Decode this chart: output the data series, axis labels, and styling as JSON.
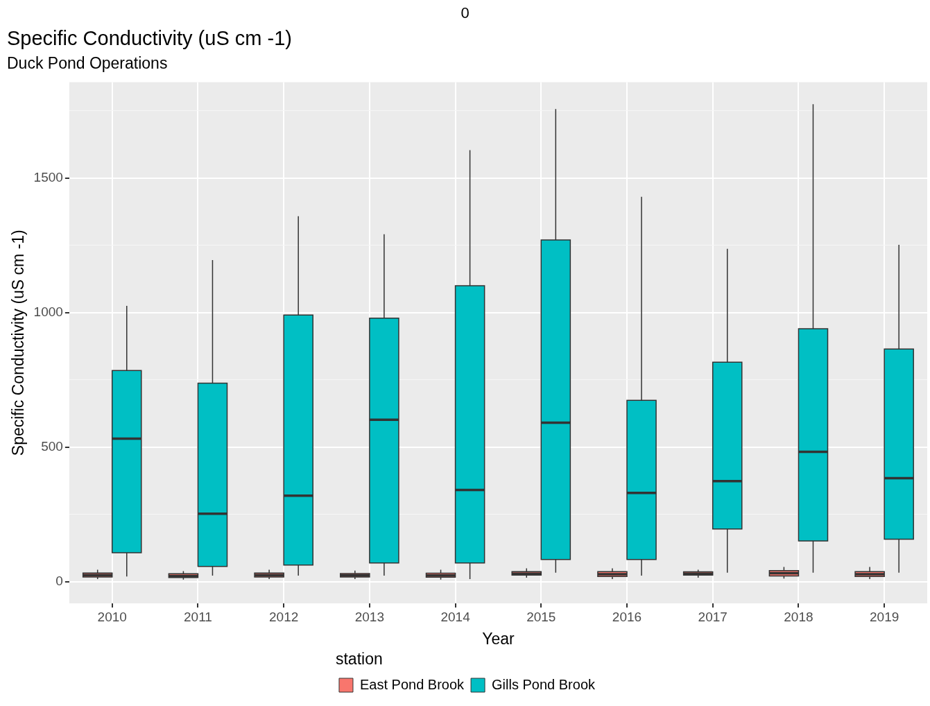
{
  "chart_data": {
    "type": "box",
    "title": "Specific Conductivity (uS cm -1)",
    "subtitle": "Duck Pond Operations",
    "xlabel": "Year",
    "ylabel": "Specific Conductivity (uS cm -1)",
    "legend_title": "station",
    "legend": "bottom",
    "grid": true,
    "annotations": [
      "0"
    ],
    "categories": [
      "2010",
      "2011",
      "2012",
      "2013",
      "2014",
      "2015",
      "2016",
      "2017",
      "2018",
      "2019"
    ],
    "ylim": [
      -80,
      1856
    ],
    "yticks": [
      0,
      {
        "value": 250,
        "label": null
      },
      500,
      {
        "value": 750,
        "label": null
      },
      1000,
      {
        "value": 1250,
        "label": null
      },
      1500,
      {
        "value": 1750,
        "label": null
      }
    ],
    "series": [
      {
        "name": "East Pond Brook",
        "color": "#f8766d",
        "boxes": [
          {
            "low": 10,
            "q1": 18,
            "median": 25,
            "q3": 33,
            "high": 45
          },
          {
            "low": 8,
            "q1": 16,
            "median": 22,
            "q3": 30,
            "high": 40
          },
          {
            "low": 10,
            "q1": 18,
            "median": 25,
            "q3": 33,
            "high": 45
          },
          {
            "low": 10,
            "q1": 18,
            "median": 24,
            "q3": 31,
            "high": 42
          },
          {
            "low": 8,
            "q1": 17,
            "median": 24,
            "q3": 32,
            "high": 45
          },
          {
            "low": 15,
            "q1": 25,
            "median": 30,
            "q3": 38,
            "high": 50
          },
          {
            "low": 10,
            "q1": 20,
            "median": 28,
            "q3": 38,
            "high": 50
          },
          {
            "low": 15,
            "q1": 25,
            "median": 30,
            "q3": 37,
            "high": 45
          },
          {
            "low": 12,
            "q1": 22,
            "median": 32,
            "q3": 42,
            "high": 55
          },
          {
            "low": 10,
            "q1": 20,
            "median": 28,
            "q3": 38,
            "high": 55
          }
        ]
      },
      {
        "name": "Gills Pond Brook",
        "color": "#00bfc4",
        "boxes": [
          {
            "low": 20,
            "q1": 108,
            "median": 532,
            "q3": 785,
            "high": 1025
          },
          {
            "low": 23,
            "q1": 57,
            "median": 253,
            "q3": 738,
            "high": 1195
          },
          {
            "low": 23,
            "q1": 62,
            "median": 320,
            "q3": 991,
            "high": 1358
          },
          {
            "low": 23,
            "q1": 70,
            "median": 602,
            "q3": 979,
            "high": 1291
          },
          {
            "low": 10,
            "q1": 70,
            "median": 341,
            "q3": 1100,
            "high": 1603
          },
          {
            "low": 34,
            "q1": 83,
            "median": 591,
            "q3": 1270,
            "high": 1756
          },
          {
            "low": 23,
            "q1": 83,
            "median": 330,
            "q3": 674,
            "high": 1430
          },
          {
            "low": 34,
            "q1": 196,
            "median": 374,
            "q3": 816,
            "high": 1237
          },
          {
            "low": 34,
            "q1": 152,
            "median": 483,
            "q3": 940,
            "high": 1774
          },
          {
            "low": 34,
            "q1": 158,
            "median": 385,
            "q3": 865,
            "high": 1252
          }
        ]
      }
    ]
  }
}
